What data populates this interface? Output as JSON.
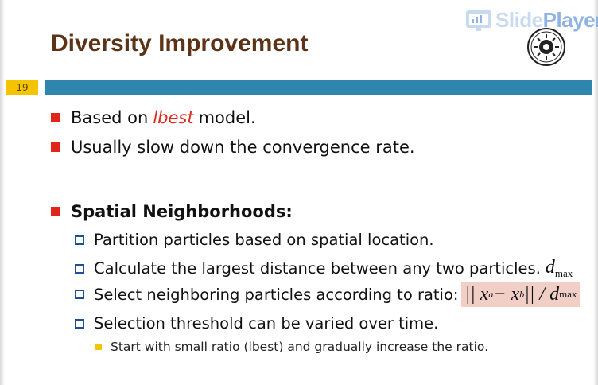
{
  "slide": {
    "title": "Diversity Improvement",
    "number": "19",
    "watermark": {
      "part1": "Slide",
      "part2": "Player"
    }
  },
  "bullets": [
    {
      "prefix": "Based on",
      "highlight": "lbest",
      "suffix": "model."
    },
    {
      "text": "Usually slow down the convergence rate."
    },
    {
      "text": "Spatial Neighborhoods:"
    }
  ],
  "sub_bullets": [
    {
      "text": "Partition particles based on spatial location."
    },
    {
      "text": "Calculate the largest distance between any two particles.",
      "math": "d",
      "math_sub": "max"
    },
    {
      "text": "Select neighboring particles according to ratio:",
      "formula": "|| x",
      "formula_a": "a",
      "formula_mid": " − x",
      "formula_b": "b",
      "formula_end": " || / d",
      "formula_sub": "max"
    },
    {
      "text": "Selection threshold can be varied over time."
    }
  ],
  "sub_sub_bullets": [
    {
      "text": "Start with small ratio (lbest) and gradually increase the ratio."
    }
  ],
  "colors": {
    "title": "#5c3317",
    "bar": "#2e86ac",
    "slide_number_bg": "#f5c400",
    "bullet_red": "#e0261b",
    "bullet_blue": "#1f4e9c",
    "formula_bg": "#f2cfc6"
  },
  "icons": {
    "watermark_logo": "slideplayer-logo-icon",
    "seal": "university-seal-icon"
  }
}
